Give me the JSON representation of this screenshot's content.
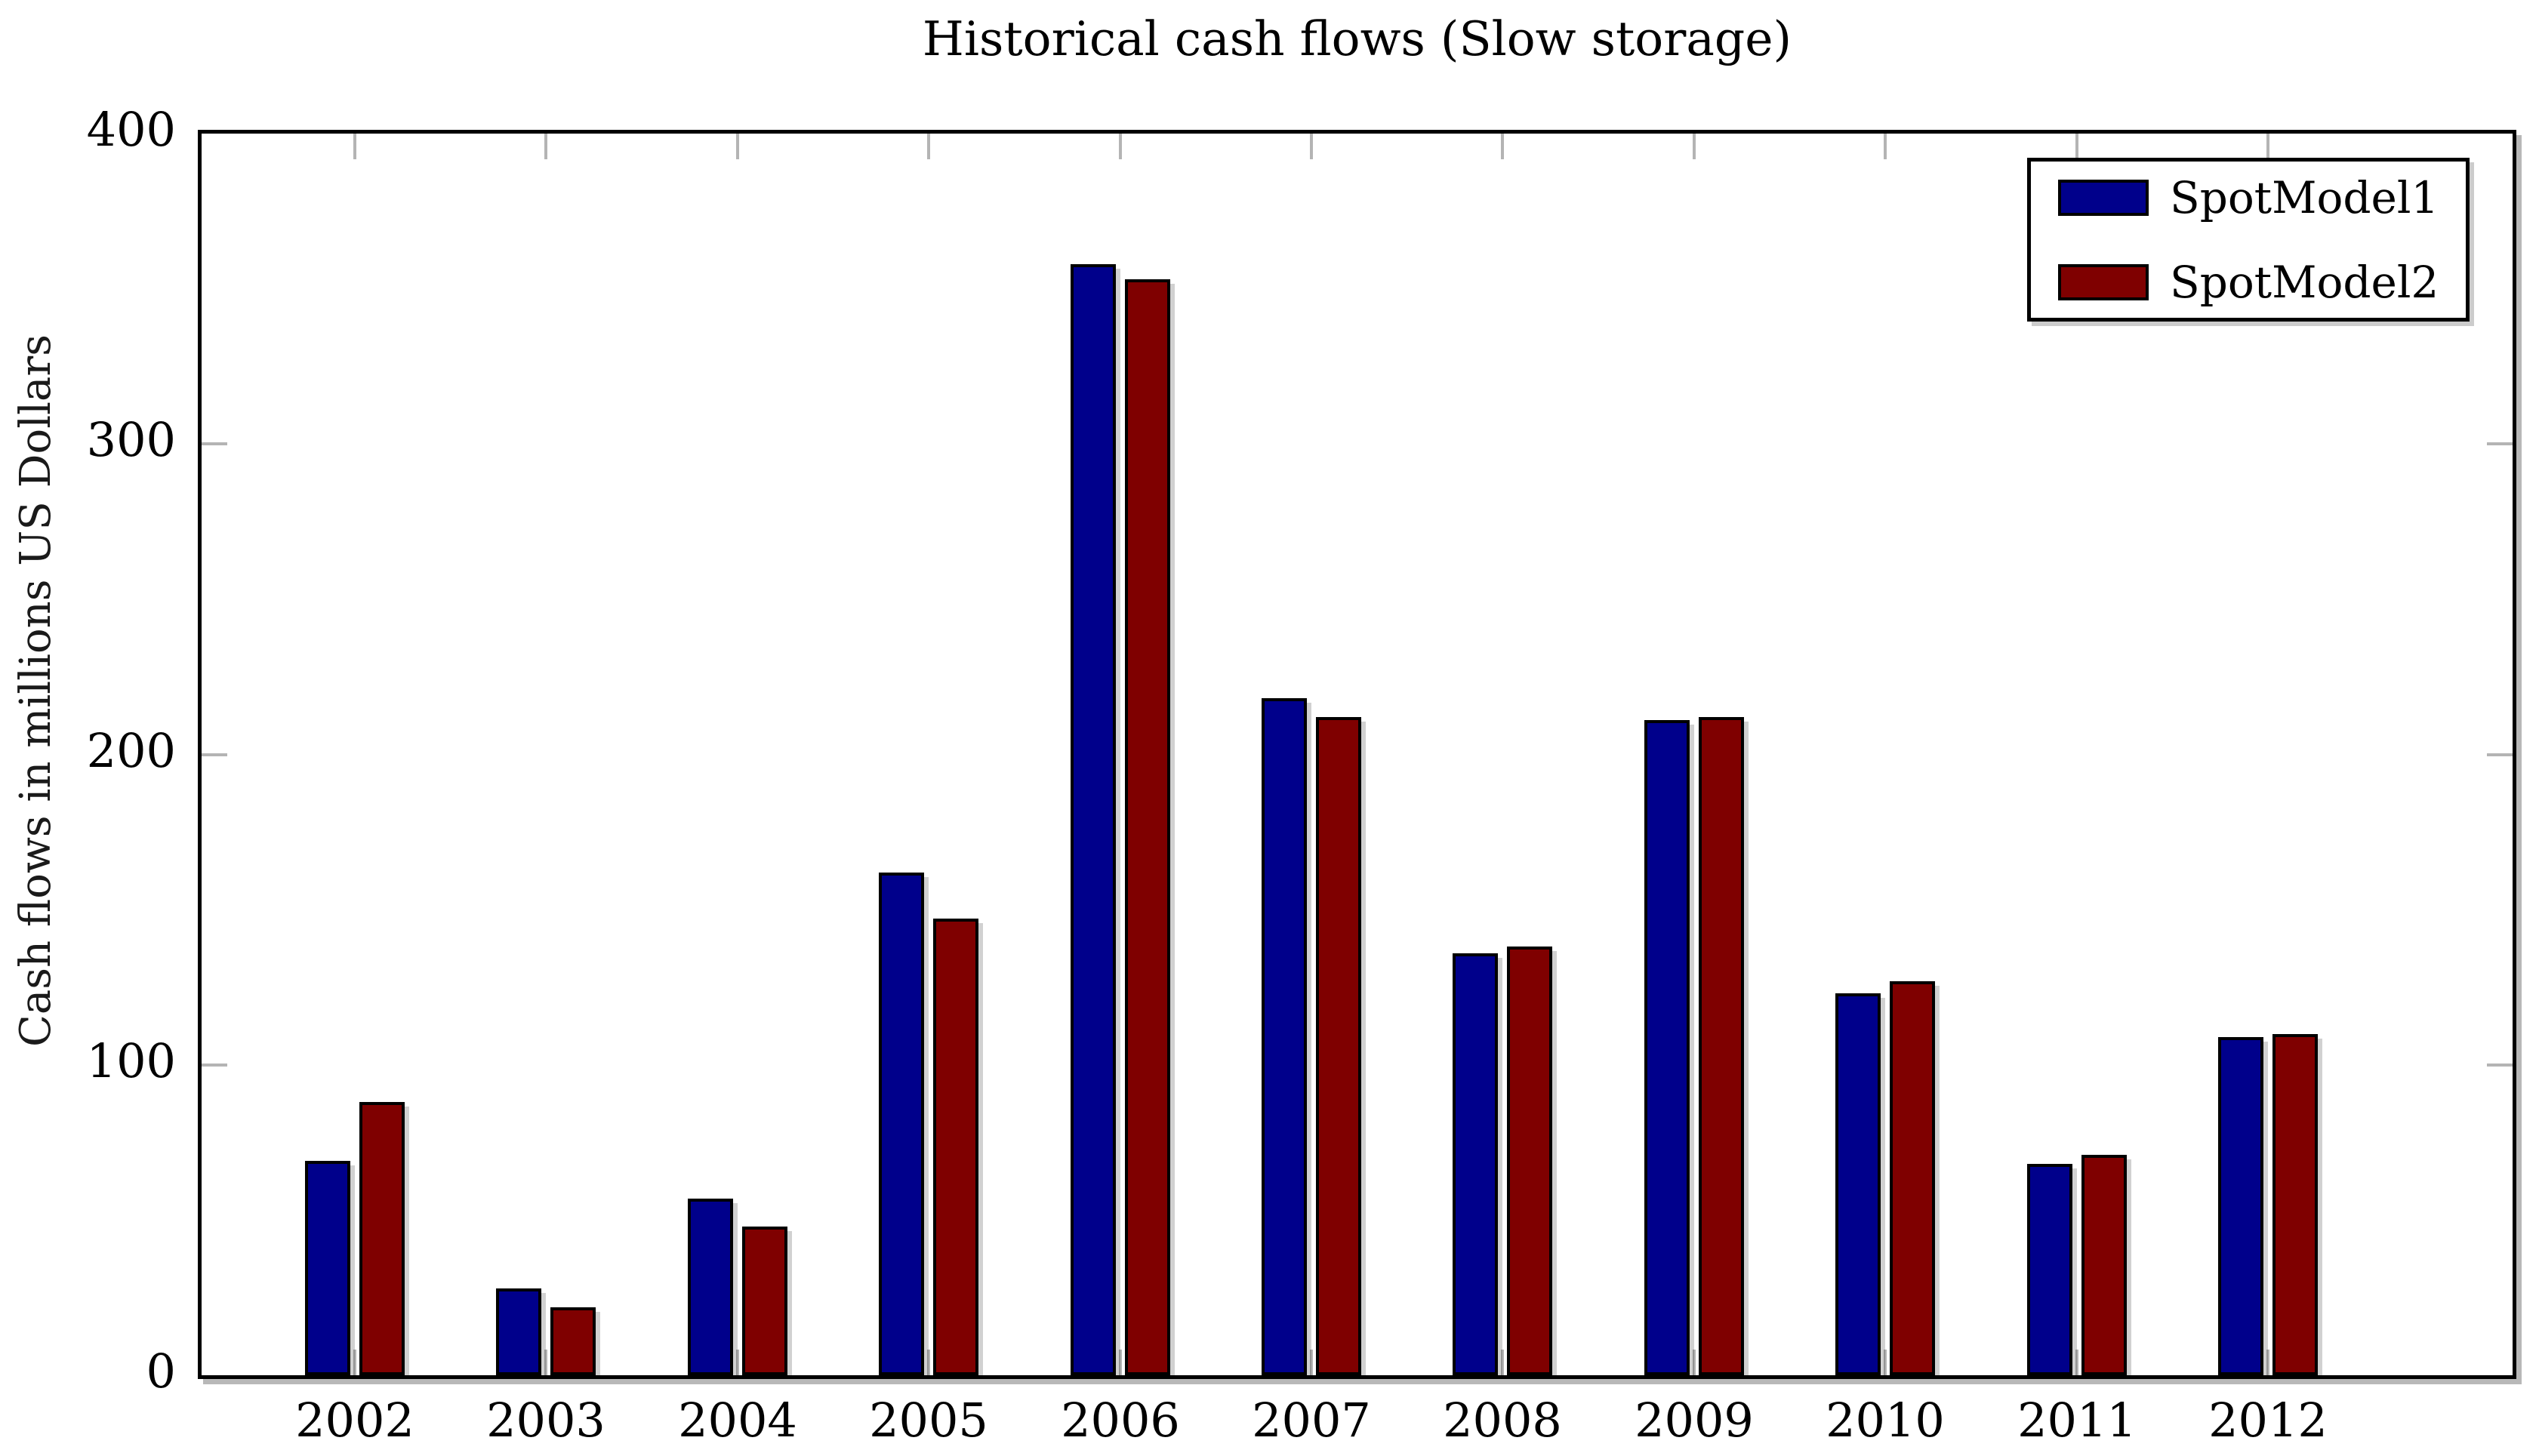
{
  "title": "Historical cash flows (Slow storage)",
  "axes": {
    "ylabel": "Cash flows in millions US Dollars",
    "xlabel": ""
  },
  "legend": {
    "position": "top-right",
    "entries": [
      "SpotModel1",
      "SpotModel2"
    ]
  },
  "colors": {
    "series1": "#00008b",
    "series2": "#7f0000",
    "axis": "#000000",
    "tick": "#b4b4b4",
    "background": "#ffffff"
  },
  "chart_data": {
    "type": "bar",
    "title": "Historical cash flows (Slow storage)",
    "xlabel": "",
    "ylabel": "Cash flows in millions US Dollars",
    "categories": [
      "2002",
      "2003",
      "2004",
      "2005",
      "2006",
      "2007",
      "2008",
      "2009",
      "2010",
      "2011",
      "2012"
    ],
    "series": [
      {
        "name": "SpotModel1",
        "color": "#00008b",
        "values": [
          69,
          28,
          57,
          162,
          358,
          218,
          136,
          211,
          123,
          68,
          109
        ]
      },
      {
        "name": "SpotModel2",
        "color": "#7f0000",
        "values": [
          88,
          22,
          48,
          147,
          353,
          212,
          138,
          212,
          127,
          71,
          110
        ]
      }
    ],
    "ylim": [
      0,
      400
    ],
    "yticks": [
      0,
      100,
      200,
      300,
      400
    ],
    "grid": false,
    "legend_position": "top-right"
  }
}
